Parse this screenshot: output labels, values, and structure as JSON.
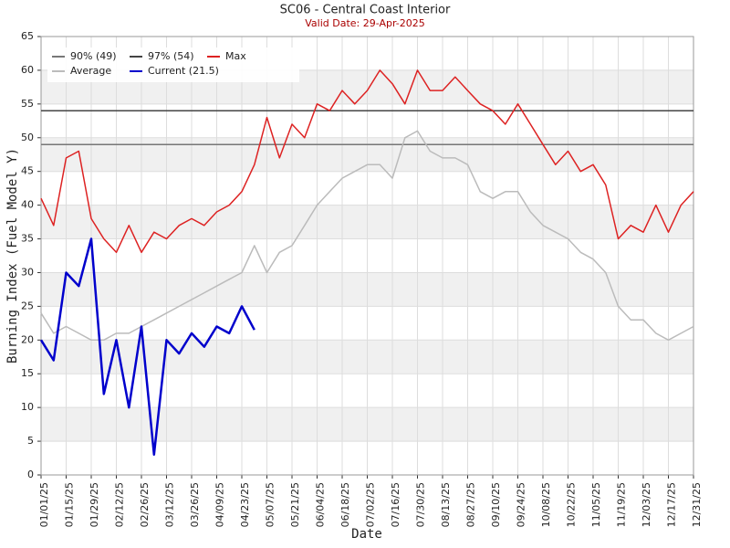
{
  "chart_data": {
    "type": "line",
    "title": "SC06 - Central Coast Interior",
    "subtitle": "Valid Date: 29-Apr-2025",
    "x_label": "Date",
    "y_label": "Burning Index (Fuel Model Y)",
    "categories": [
      "01/01/25",
      null,
      "01/15/25",
      null,
      "01/29/25",
      null,
      "02/12/25",
      null,
      "02/26/25",
      null,
      "03/12/25",
      null,
      "03/26/25",
      null,
      "04/09/25",
      null,
      "04/23/25",
      null,
      "05/07/25",
      null,
      "05/21/25",
      null,
      "06/04/25",
      null,
      "06/18/25",
      null,
      "07/02/25",
      null,
      "07/16/25",
      null,
      "07/30/25",
      null,
      "08/13/25",
      null,
      "08/27/25",
      null,
      "09/10/25",
      null,
      "09/24/25",
      null,
      "10/08/25",
      null,
      "10/22/25",
      null,
      "11/05/25",
      null,
      "11/19/25",
      null,
      "12/03/25",
      null,
      "12/17/25",
      null,
      "12/31/25"
    ],
    "series": [
      {
        "name": "90% (49)",
        "color": "#777777",
        "width": 1.5,
        "values": [
          49,
          49,
          49,
          49,
          49,
          49,
          49,
          49,
          49,
          49,
          49,
          49,
          49,
          49,
          49,
          49,
          49,
          49,
          49,
          49,
          49,
          49,
          49,
          49,
          49,
          49,
          49,
          49,
          49,
          49,
          49,
          49,
          49,
          49,
          49,
          49,
          49,
          49,
          49,
          49,
          49,
          49,
          49,
          49,
          49,
          49,
          49,
          49,
          49,
          49,
          49,
          49,
          49
        ]
      },
      {
        "name": "97% (54)",
        "color": "#444444",
        "width": 1.5,
        "values": [
          54,
          54,
          54,
          54,
          54,
          54,
          54,
          54,
          54,
          54,
          54,
          54,
          54,
          54,
          54,
          54,
          54,
          54,
          54,
          54,
          54,
          54,
          54,
          54,
          54,
          54,
          54,
          54,
          54,
          54,
          54,
          54,
          54,
          54,
          54,
          54,
          54,
          54,
          54,
          54,
          54,
          54,
          54,
          54,
          54,
          54,
          54,
          54,
          54,
          54,
          54,
          54,
          54
        ]
      },
      {
        "name": "Max",
        "color": "#dd2222",
        "width": 1.5,
        "values": [
          41,
          37,
          47,
          48,
          38,
          35,
          33,
          37,
          33,
          36,
          35,
          37,
          38,
          37,
          39,
          40,
          42,
          46,
          53,
          47,
          52,
          50,
          55,
          54,
          57,
          55,
          57,
          60,
          58,
          55,
          60,
          57,
          57,
          59,
          57,
          55,
          54,
          52,
          55,
          52,
          49,
          46,
          48,
          45,
          46,
          43,
          35,
          37,
          36,
          40,
          36,
          40,
          42
        ]
      },
      {
        "name": "Average",
        "color": "#bbbbbb",
        "width": 1.5,
        "values": [
          24,
          21,
          22,
          21,
          20,
          20,
          21,
          21,
          22,
          23,
          24,
          25,
          26,
          27,
          28,
          29,
          30,
          34,
          30,
          33,
          34,
          37,
          40,
          42,
          44,
          45,
          46,
          46,
          44,
          50,
          51,
          48,
          47,
          47,
          46,
          42,
          41,
          42,
          42,
          39,
          37,
          36,
          35,
          33,
          32,
          30,
          25,
          23,
          23,
          21,
          20,
          21,
          22
        ]
      },
      {
        "name": "Current (21.5)",
        "color": "#0000cc",
        "width": 2.5,
        "values": [
          20,
          17,
          30,
          28,
          35,
          12,
          20,
          10,
          22,
          3,
          20,
          18,
          21,
          19,
          22,
          21,
          25,
          21.5,
          null,
          null,
          null,
          null,
          null,
          null,
          null,
          null,
          null,
          null,
          null,
          null,
          null,
          null,
          null,
          null,
          null,
          null,
          null,
          null,
          null,
          null,
          null,
          null,
          null,
          null,
          null,
          null,
          null,
          null,
          null,
          null,
          null,
          null,
          null
        ]
      }
    ],
    "ylim": [
      0,
      65
    ],
    "yticks": [
      0,
      5,
      10,
      15,
      20,
      25,
      30,
      35,
      40,
      45,
      50,
      55,
      60,
      65
    ],
    "grid": true
  }
}
